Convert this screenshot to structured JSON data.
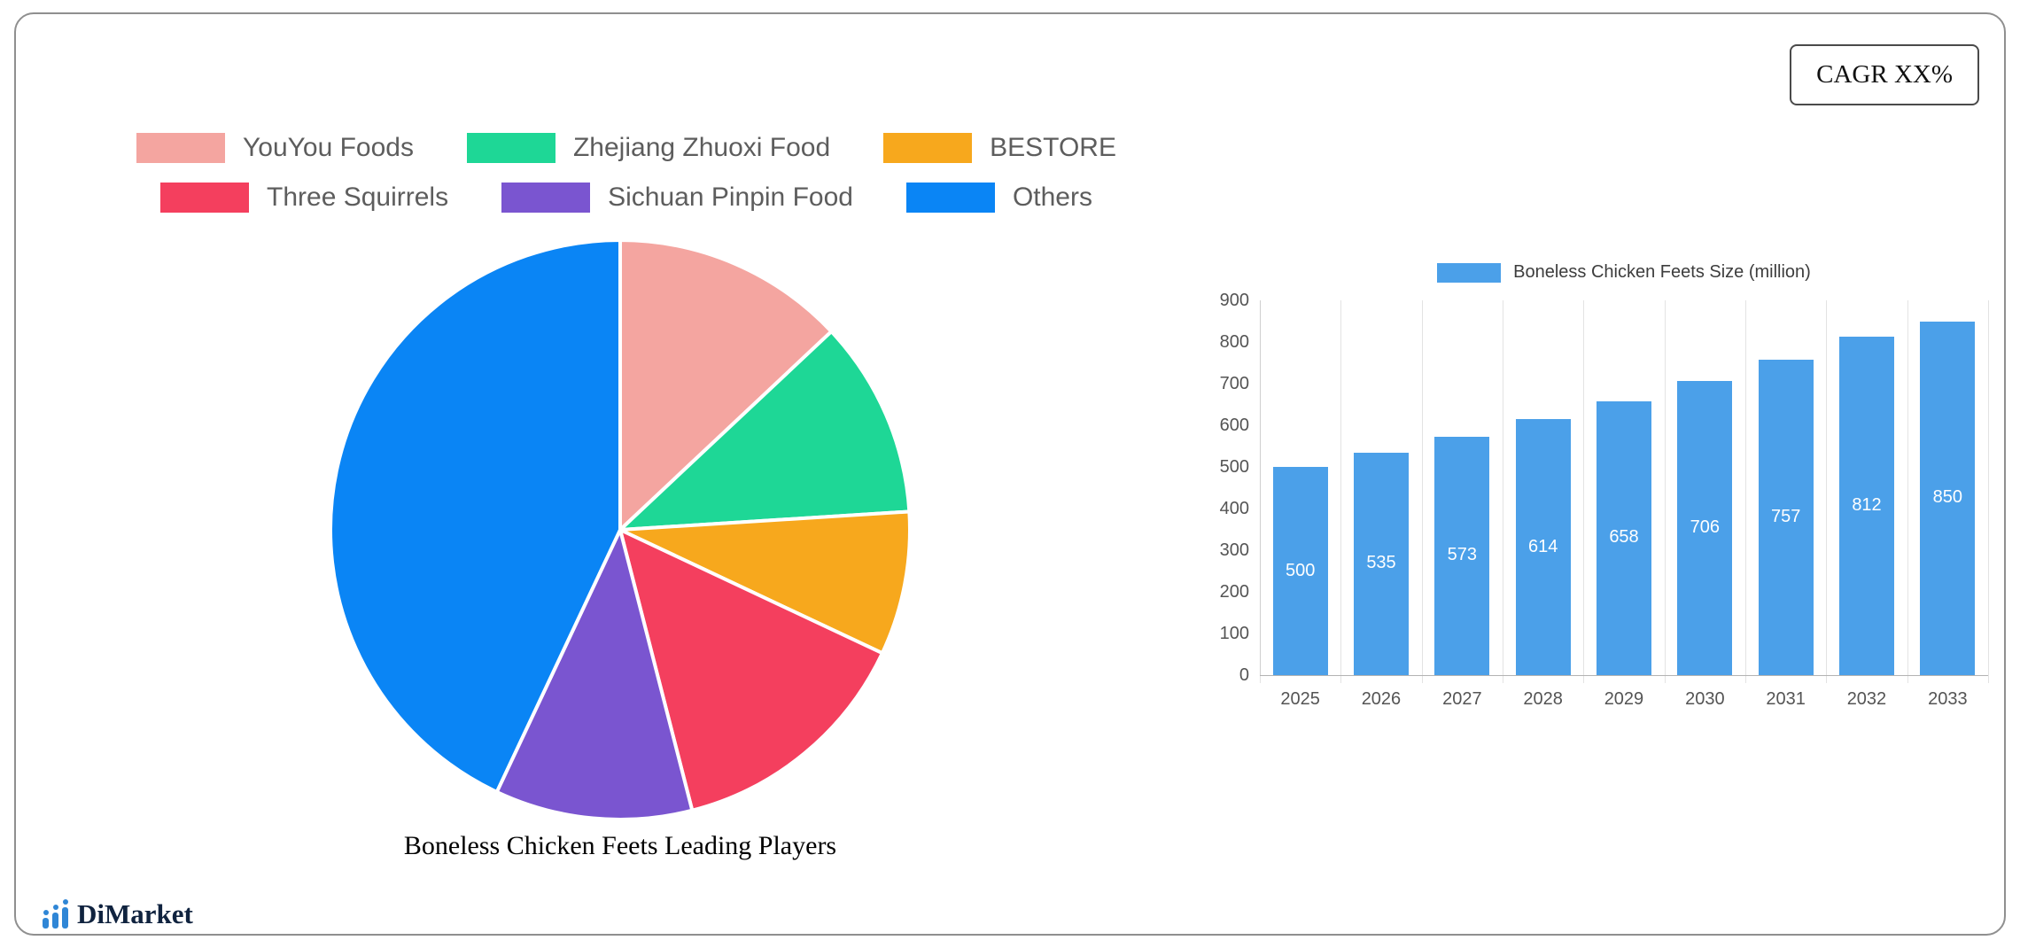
{
  "cagr_label": "CAGR XX%",
  "logo": {
    "text": "DiMarket"
  },
  "chart_data": [
    {
      "type": "pie",
      "title": "Boneless Chicken Feets Leading Players",
      "labels": [
        "YouYou Foods",
        "Zhejiang Zhuoxi Food",
        "BESTORE",
        "Three Squirrels",
        "Sichuan Pinpin Food",
        "Others"
      ],
      "values": [
        13,
        11,
        8,
        14,
        11,
        43
      ],
      "colors": [
        "#F4A5A0",
        "#1ED796",
        "#F7A81D",
        "#F43F5E",
        "#7A55D0",
        "#0A85F5"
      ],
      "legend_position": "top",
      "legend_rows": [
        3,
        3
      ]
    },
    {
      "type": "bar",
      "title": "Boneless Chicken Feets Size (million)",
      "categories": [
        "2025",
        "2026",
        "2027",
        "2028",
        "2029",
        "2030",
        "2031",
        "2032",
        "2033"
      ],
      "values": [
        500,
        535,
        573,
        614,
        658,
        706,
        757,
        812,
        850
      ],
      "ylim": [
        0,
        900
      ],
      "ytick_step": 100,
      "bar_color": "#4BA0E9",
      "grid": "vertical",
      "legend_position": "top"
    }
  ]
}
